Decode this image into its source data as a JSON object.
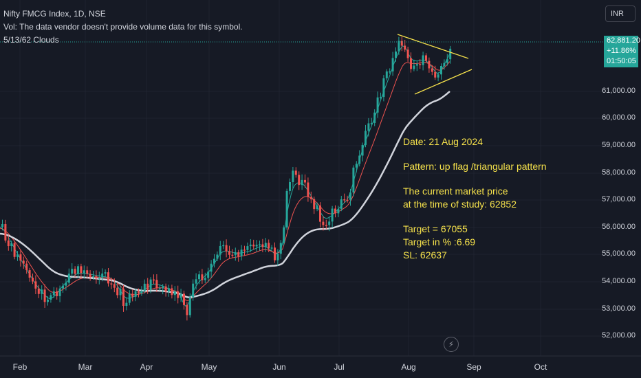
{
  "header": {
    "symbol_line": "Nifty FMCG Index, 1D, NSE",
    "vol_line": "Vol: The data vendor doesn't provide volume data for this symbol.",
    "indicator_line": "5/13/62 Clouds"
  },
  "currency_button": "INR",
  "price_tag": {
    "price": "62,881.20",
    "change": "+11.86%",
    "countdown": "01:50:05"
  },
  "annotation": {
    "date": "Date: 21 Aug 2024",
    "pattern": "Pattern: up flag /triangular pattern",
    "price_line1": "The current market price",
    "price_line2": "at the time of study: 62852",
    "target": "Target = 67055",
    "target_pct": "Target in % :6.69",
    "sl": "SL: 62637"
  },
  "colors": {
    "background": "#161a25",
    "up": "#26a69a",
    "down": "#ef5350",
    "ma_fast": "#ef5350",
    "ma_mid": "#26a69a",
    "ma_slow": "#d1d4dc",
    "trendline": "#f5e14b"
  },
  "icons": {
    "lightning": "lightning-icon"
  },
  "chart_data": {
    "type": "candlestick",
    "y_axis": {
      "ticks": [
        "61,000.00",
        "60,000.00",
        "59,000.00",
        "58,000.00",
        "57,000.00",
        "56,000.00",
        "55,000.00",
        "54,000.00",
        "53,000.00",
        "52,000.00"
      ],
      "range": [
        51500,
        63400
      ]
    },
    "x_axis": {
      "ticks": [
        "Feb",
        "Mar",
        "Apr",
        "May",
        "Jun",
        "Jul",
        "Aug",
        "Sep",
        "Oct"
      ]
    },
    "current_price": 62881.2,
    "grid": true
  }
}
